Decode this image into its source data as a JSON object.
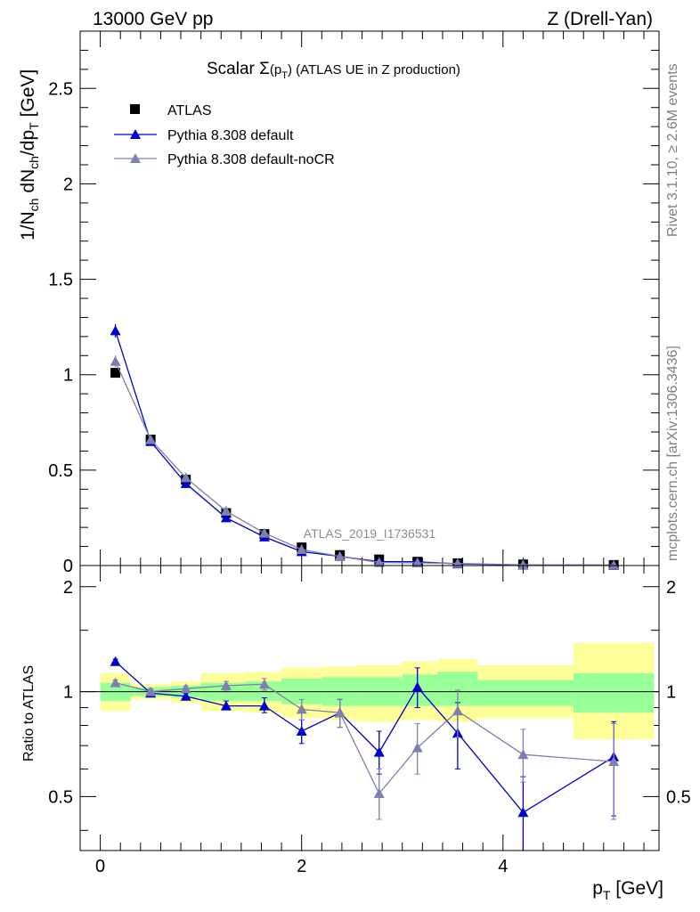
{
  "header": {
    "left": "13000 GeV pp",
    "right": "Z (Drell-Yan)"
  },
  "side_labels": {
    "rivet": "Rivet 3.1.10, ≥ 2.6M events",
    "mcplots": "mcplots.cern.ch [arXiv:1306.3436]"
  },
  "chart_data": [
    {
      "type": "scatter",
      "panel": "main",
      "title": "Scalar Σ(pT) (ATLAS UE in Z production)",
      "title_parts": {
        "pre": "Scalar ",
        "sigma": "Σ",
        "arg": "(p",
        "sub": "T",
        "post": ") (ATLAS UE in Z production)"
      },
      "ylabel": "1/Nch dNch/dpT [GeV]",
      "xlabel": "pT [GeV]",
      "watermark": "ATLAS_2019_I1736531",
      "xlim": [
        -0.2,
        5.55
      ],
      "ylim": [
        0,
        2.8
      ],
      "yticks": [
        0,
        0.5,
        1,
        1.5,
        2,
        2.5
      ],
      "ytick_labels": [
        "0",
        "0.5",
        "1",
        "1.5",
        "2",
        "2.5"
      ],
      "legend_position": "top-left",
      "series": [
        {
          "name": "ATLAS",
          "marker": "square",
          "color": "#000000",
          "x": [
            0.15,
            0.5,
            0.85,
            1.25,
            1.63,
            2.0,
            2.38,
            2.77,
            3.15,
            3.55,
            4.2,
            5.1
          ],
          "y": [
            1.01,
            0.66,
            0.45,
            0.275,
            0.165,
            0.095,
            0.055,
            0.032,
            0.02,
            0.012,
            0.006,
            0.003
          ]
        },
        {
          "name": "Pythia 8.308 default",
          "marker": "triangle",
          "color": "#0000cc",
          "x": [
            0.15,
            0.5,
            0.85,
            1.25,
            1.63,
            2.0,
            2.38,
            2.77,
            3.15,
            3.55,
            4.2,
            5.1
          ],
          "y": [
            1.23,
            0.65,
            0.43,
            0.25,
            0.15,
            0.073,
            0.048,
            0.021,
            0.02,
            0.009,
            0.003,
            0.002
          ],
          "yerr": [
            0.035,
            0.01,
            0.01,
            0.008,
            0.006,
            0.004,
            0.003,
            0.002,
            0.002,
            0.001,
            0.001,
            0.001
          ]
        },
        {
          "name": "Pythia 8.308 default-noCR",
          "marker": "triangle",
          "color": "#7f7fb2",
          "x": [
            0.15,
            0.5,
            0.85,
            1.25,
            1.63,
            2.0,
            2.38,
            2.77,
            3.15,
            3.55,
            4.2,
            5.1
          ],
          "y": [
            1.07,
            0.66,
            0.46,
            0.285,
            0.17,
            0.084,
            0.048,
            0.016,
            0.014,
            0.011,
            0.004,
            0.002
          ],
          "yerr": [
            0.03,
            0.01,
            0.01,
            0.008,
            0.006,
            0.004,
            0.003,
            0.002,
            0.002,
            0.001,
            0.001,
            0.001
          ]
        }
      ]
    },
    {
      "type": "scatter",
      "panel": "ratio",
      "ylabel": "Ratio to ATLAS",
      "xlim": [
        -0.2,
        5.55
      ],
      "ylim": [
        0.35,
        2.3
      ],
      "yscale": "log",
      "yticks": [
        0.5,
        1,
        2
      ],
      "ytick_labels": [
        "0.5",
        "1",
        "2"
      ],
      "xticks": [
        0,
        2,
        4
      ],
      "xtick_labels": [
        "0",
        "2",
        "4"
      ],
      "bands": {
        "edges": [
          0.0,
          0.3,
          0.7,
          1.0,
          1.45,
          1.8,
          2.2,
          2.55,
          3.0,
          3.35,
          3.75,
          4.7,
          5.5
        ],
        "green_low": [
          0.94,
          0.97,
          0.96,
          0.94,
          0.94,
          0.92,
          0.91,
          0.91,
          0.91,
          0.91,
          0.91,
          0.87
        ],
        "green_high": [
          1.06,
          1.03,
          1.04,
          1.06,
          1.07,
          1.09,
          1.1,
          1.1,
          1.12,
          1.14,
          1.08,
          1.13
        ],
        "yellow_low": [
          0.88,
          0.95,
          0.93,
          0.88,
          0.87,
          0.84,
          0.83,
          0.82,
          0.83,
          0.82,
          0.84,
          0.73
        ],
        "yellow_high": [
          1.13,
          1.05,
          1.07,
          1.13,
          1.14,
          1.17,
          1.18,
          1.19,
          1.22,
          1.24,
          1.19,
          1.38
        ],
        "green_color": "#99ff99",
        "yellow_color": "#ffff99"
      },
      "series": [
        {
          "name": "Pythia 8.308 default",
          "color": "#0000cc",
          "x": [
            0.15,
            0.5,
            0.85,
            1.25,
            1.63,
            2.0,
            2.38,
            2.77,
            3.15,
            3.55,
            4.2,
            5.1
          ],
          "y": [
            1.22,
            0.99,
            0.97,
            0.91,
            0.91,
            0.77,
            0.87,
            0.67,
            1.03,
            0.76,
            0.45,
            0.65
          ],
          "ylo": [
            1.2,
            0.97,
            0.95,
            0.89,
            0.87,
            0.71,
            0.79,
            0.58,
            0.9,
            0.6,
            0.34,
            0.44
          ],
          "yhi": [
            1.24,
            1.01,
            0.99,
            0.94,
            0.96,
            0.83,
            0.95,
            0.77,
            1.17,
            0.93,
            0.57,
            0.82
          ]
        },
        {
          "name": "Pythia 8.308 default-noCR",
          "color": "#7f7fb2",
          "x": [
            0.15,
            0.5,
            0.85,
            1.25,
            1.63,
            2.0,
            2.38,
            2.77,
            3.15,
            3.55,
            4.2,
            5.1
          ],
          "y": [
            1.06,
            1.0,
            1.02,
            1.04,
            1.05,
            0.89,
            0.87,
            0.51,
            0.69,
            0.88,
            0.66,
            0.63
          ],
          "ylo": [
            1.04,
            0.98,
            1.0,
            1.01,
            1.01,
            0.83,
            0.79,
            0.43,
            0.58,
            0.74,
            0.55,
            0.43
          ],
          "yhi": [
            1.08,
            1.02,
            1.04,
            1.07,
            1.09,
            0.95,
            0.95,
            0.6,
            0.81,
            1.01,
            0.78,
            0.81
          ]
        }
      ]
    }
  ]
}
